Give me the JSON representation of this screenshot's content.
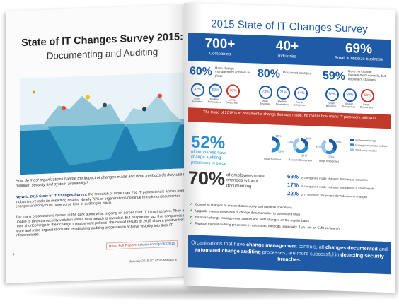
{
  "left_page": {
    "title": "State of IT Changes Survey 2015:",
    "subtitle": "Documenting and Auditing",
    "question": "How do most organizations handle the impact of changes made and what methods do they use to maintain security and system availability?",
    "para1_lead": "Netwrix 2015 State of IT Changes Survey,",
    "para1": "the research of more than 700 IT professionals across over 40 industries, reveals its unsettling results. Nearly 70% of organizations continue to make undocumented changes and only 50% have some kind of auditing in place.",
    "para2": "Too many organizations remain in the dark about what is going on across their IT infrastructures. They are unable to detect a security violation until a data breach is revealed. But despite the fact that companies still have shortcomings in their change management policies, the overall results of 2015 show a positive trend. More and more organizations are establishing auditing processes to achieve visibility into their IT infrastructures.",
    "read_label": "Read Full Report:",
    "read_url": "netwrix.com/go/itcr2015",
    "footer": "January 2015 | Custom Magazine",
    "page_number": "4"
  },
  "right_page": {
    "title": "2015 State of IT Changes Survey",
    "band_stats": [
      {
        "value": "700+",
        "label": "Companies"
      },
      {
        "value": "40+",
        "label": "Industries"
      },
      {
        "value": "69%",
        "label": "Small & Midsize business"
      }
    ],
    "pct_blocks": [
      {
        "value": "60%",
        "text": "Have change management controls in place"
      },
      {
        "value": "80%",
        "text": "Document changes"
      },
      {
        "value": "59%",
        "text": "Have no change management controls, but document changes"
      }
    ],
    "circles": [
      [
        {
          "v": "42%",
          "l": "Small Business"
        },
        {
          "v": "52%",
          "l": "Medium Enterprises"
        },
        {
          "v": "80%",
          "l": "Large Enterprises"
        }
      ],
      [
        {
          "v": "73%",
          "l": "Small Business"
        },
        {
          "v": "71%",
          "l": "Medium Enterprises"
        },
        {
          "v": "64%",
          "l": "Large Enterprises"
        }
      ],
      [
        {
          "v": "58%",
          "l": "Small Business"
        },
        {
          "v": "58%",
          "l": "Medium Enterprises"
        },
        {
          "v": "64%",
          "l": "Large Enterprises"
        }
      ]
    ],
    "trend_text": "The trend of 2015 is to document a change that was made, no matter how many IT pros work with you",
    "big_52": "52%",
    "text_52": "of companies have change auditing processes in place",
    "chart_data": {
      "type": "pie",
      "groups": [
        {
          "label": "Small Business",
          "slices": [
            {
              "name": "System native logs",
              "value": 19
            },
            {
              "name": "Homegrown scripted solution",
              "value": 33
            },
            {
              "name": "Third-party solution",
              "value": 0
            }
          ]
        },
        {
          "label": "Medium Enterprises",
          "slices": [
            {
              "name": "System native logs",
              "value": 26
            },
            {
              "name": "Homegrown scripted solution",
              "value": 37
            },
            {
              "name": "Third-party solution",
              "value": 33
            }
          ]
        },
        {
          "label": "Large Enterprises",
          "slices": [
            {
              "name": "System native logs",
              "value": 35
            },
            {
              "name": "Homegrown scripted solution",
              "value": 23
            },
            {
              "name": "Third-party solution",
              "value": 33
            }
          ]
        }
      ],
      "legend": [
        "System native logs",
        "Homegrown scripted solution",
        "Third-party solution"
      ],
      "legend_position": "right",
      "colors": [
        "#1e5aa6",
        "#2a8ed0",
        "#9cc7ea"
      ]
    },
    "big_70": "70%",
    "text_70": "of employees make changes without documenting",
    "right_stats": [
      {
        "value": "69%",
        "text": "of companies made changes that caused downtime"
      },
      {
        "value": "17%",
        "text": "of companies made changes that caused a data breach"
      },
      {
        "value": "22%",
        "text": "of IT teams of 10+ people don't document changes"
      }
    ],
    "checklist": [
      "Control all changes to ensure data security and optimize operations",
      "Upgrade manual processes of change documentation to automated ones",
      "Establish change management controls and audit changes on the regular basis",
      "Replace manual auditing processes by automated methods (especially, if you are an SMB company)"
    ],
    "bottom_text_1": "Organizations that have",
    "bottom_bold_1": "change management",
    "bottom_text_2": "controls, all",
    "bottom_bold_2": "changes documented",
    "bottom_text_3": "and",
    "bottom_bold_3": "automated change auditing",
    "bottom_text_4": "processes, are more successful in",
    "bottom_bold_4": "detecting security breaches."
  },
  "colors": {
    "primary_blue": "#1e5aa6",
    "accent_red": "#c0392b",
    "light_blue": "#2a8ed0"
  }
}
